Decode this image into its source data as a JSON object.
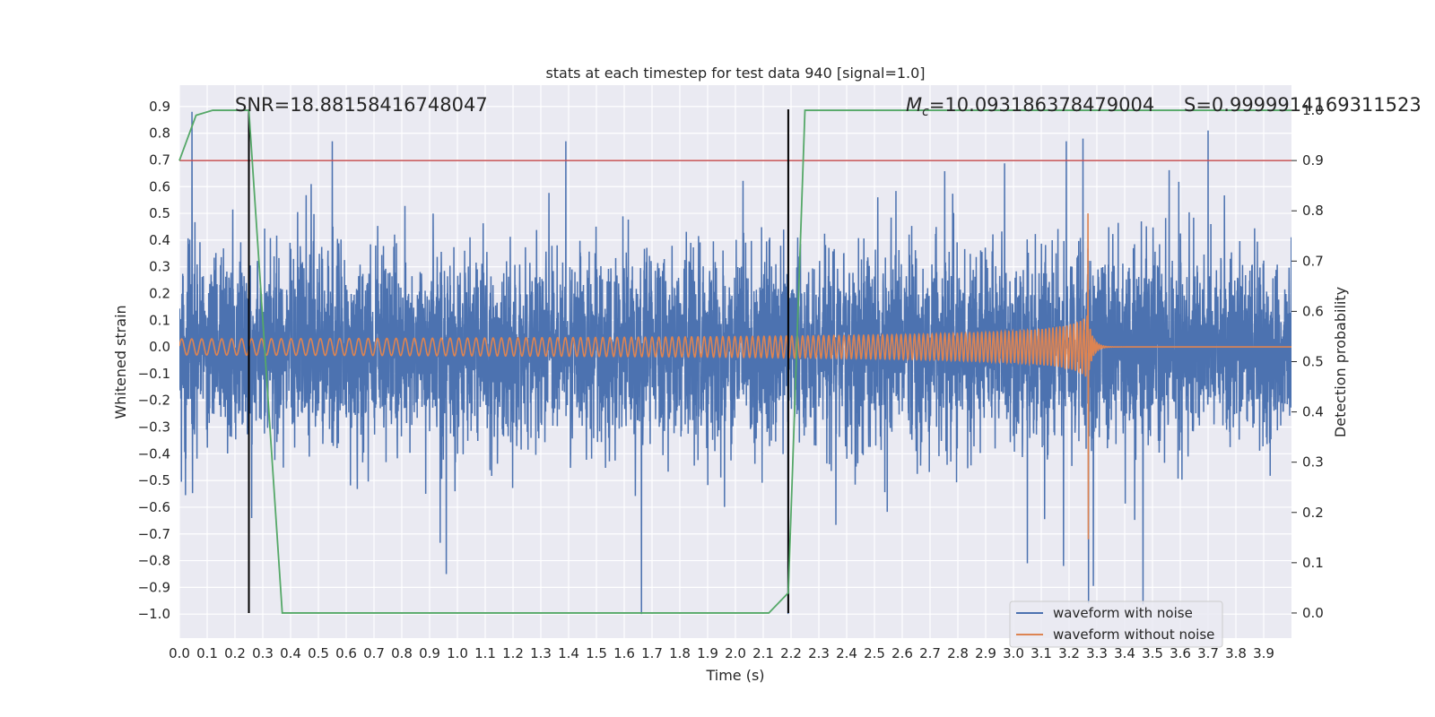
{
  "chart_data": {
    "type": "line",
    "title": "stats at each timestep for test data 940 [signal=1.0]",
    "xlabel": "Time (s)",
    "ylabel": "Whitened strain",
    "y2label": "Detection probability",
    "xlim": [
      0.0,
      4.0
    ],
    "ylim": [
      -1.09,
      0.98
    ],
    "y2lim": [
      -0.05,
      1.05
    ],
    "grid": true,
    "legend_position": "lower-right",
    "annotations": {
      "snr": "SNR=18.88158416748047",
      "mc_symbol": "M",
      "mc_subscript": "c",
      "mc_value": "=10.093186378479004",
      "s": "S=0.9999914169311523"
    },
    "series": [
      {
        "name": "waveform with noise",
        "axis": "left",
        "color": "#4c72b0",
        "description_envelope": {
          "typical_abs": 0.35,
          "max_peaks": [
            0.81,
            0.78,
            0.77,
            0.77,
            0.77
          ],
          "min_peaks": [
            -0.96,
            -0.85,
            -0.82,
            -0.81
          ]
        }
      },
      {
        "name": "waveform without noise",
        "axis": "left",
        "color": "#dd8452",
        "merger_time": 3.27,
        "start_amplitude": 0.03,
        "peak_max": 0.5,
        "peak_min": -0.72,
        "start_period": 0.036,
        "merger_period": 0.012
      },
      {
        "name": "detection probability",
        "axis": "right",
        "color": "#55a868",
        "x": [
          0.0,
          0.06,
          0.12,
          0.25,
          0.37,
          2.12,
          2.19,
          2.25,
          4.0
        ],
        "y": [
          0.9,
          0.99,
          1.0,
          1.0,
          0.0,
          0.0,
          0.04,
          1.0,
          1.0
        ]
      }
    ],
    "threshold": {
      "axis": "right",
      "value": 0.9,
      "color": "#c44e52"
    },
    "event_lines": [
      0.25,
      2.19
    ],
    "xticks": [
      "0.0",
      "0.1",
      "0.2",
      "0.3",
      "0.4",
      "0.5",
      "0.6",
      "0.7",
      "0.8",
      "0.9",
      "1.0",
      "1.1",
      "1.2",
      "1.3",
      "1.4",
      "1.5",
      "1.6",
      "1.7",
      "1.8",
      "1.9",
      "2.0",
      "2.1",
      "2.2",
      "2.3",
      "2.4",
      "2.5",
      "2.6",
      "2.7",
      "2.8",
      "2.9",
      "3.0",
      "3.1",
      "3.2",
      "3.3",
      "3.4",
      "3.5",
      "3.6",
      "3.7",
      "3.8",
      "3.9"
    ],
    "yticks": [
      "0.9",
      "0.8",
      "0.7",
      "0.6",
      "0.5",
      "0.4",
      "0.3",
      "0.2",
      "0.1",
      "0.0",
      "−0.1",
      "−0.2",
      "−0.3",
      "−0.4",
      "−0.5",
      "−0.6",
      "−0.7",
      "−0.8",
      "−0.9",
      "−1.0"
    ],
    "y2ticks": [
      "1.0",
      "0.9",
      "0.8",
      "0.7",
      "0.6",
      "0.5",
      "0.4",
      "0.3",
      "0.2",
      "0.1",
      "0.0"
    ],
    "colors": {
      "plot_bg": "#eaeaf2",
      "grid": "#ffffff",
      "event_line": "#000000"
    }
  }
}
